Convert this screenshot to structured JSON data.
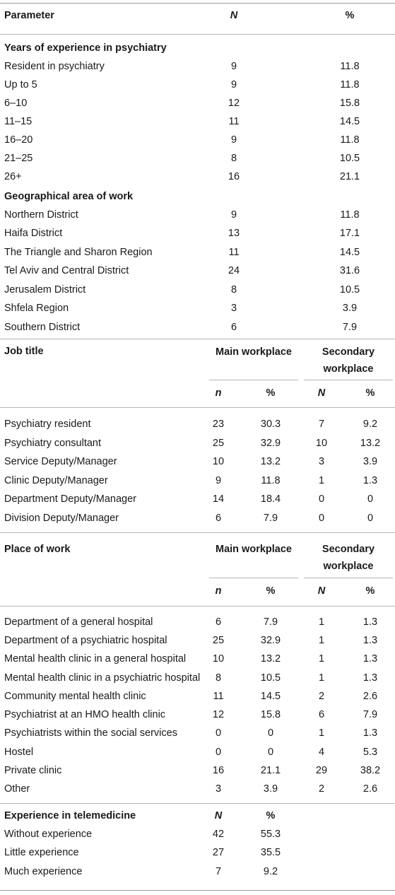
{
  "header": {
    "parameter": "Parameter",
    "n": "N",
    "pct": "%"
  },
  "section1": {
    "title": "Years of experience in psychiatry",
    "rows": [
      {
        "label": "Resident in psychiatry",
        "n": "9",
        "pct": "11.8"
      },
      {
        "label": "Up to 5",
        "n": "9",
        "pct": "11.8"
      },
      {
        "label": "6–10",
        "n": "12",
        "pct": "15.8"
      },
      {
        "label": "11–15",
        "n": "11",
        "pct": "14.5"
      },
      {
        "label": "16–20",
        "n": "9",
        "pct": "11.8"
      },
      {
        "label": "21–25",
        "n": "8",
        "pct": "10.5"
      },
      {
        "label": "26+",
        "n": "16",
        "pct": "21.1"
      }
    ]
  },
  "section2": {
    "title": "Geographical area of work",
    "rows": [
      {
        "label": "Northern District",
        "n": "9",
        "pct": "11.8"
      },
      {
        "label": "Haifa District",
        "n": "13",
        "pct": "17.1"
      },
      {
        "label": "The Triangle and Sharon Region",
        "n": "11",
        "pct": "14.5"
      },
      {
        "label": "Tel Aviv and Central District",
        "n": "24",
        "pct": "31.6"
      },
      {
        "label": "Jerusalem District",
        "n": "8",
        "pct": "10.5"
      },
      {
        "label": "Shfela Region",
        "n": "3",
        "pct": "3.9"
      },
      {
        "label": "Southern District",
        "n": "6",
        "pct": "7.9"
      }
    ]
  },
  "section3": {
    "title": "Job title",
    "main_header": "Main workplace",
    "secondary_header": "Secondary workplace",
    "sub_main_n": "n",
    "sub_main_pct": "%",
    "sub_sec_n": "N",
    "sub_sec_pct": "%",
    "rows": [
      {
        "label": "Psychiatry resident",
        "mn": "23",
        "mp": "30.3",
        "sn": "7",
        "sp": "9.2"
      },
      {
        "label": "Psychiatry consultant",
        "mn": "25",
        "mp": "32.9",
        "sn": "10",
        "sp": "13.2"
      },
      {
        "label": "Service Deputy/Manager",
        "mn": "10",
        "mp": "13.2",
        "sn": "3",
        "sp": "3.9"
      },
      {
        "label": "Clinic Deputy/Manager",
        "mn": "9",
        "mp": "11.8",
        "sn": "1",
        "sp": "1.3"
      },
      {
        "label": "Department Deputy/Manager",
        "mn": "14",
        "mp": "18.4",
        "sn": "0",
        "sp": "0"
      },
      {
        "label": "Division Deputy/Manager",
        "mn": "6",
        "mp": "7.9",
        "sn": "0",
        "sp": "0"
      }
    ]
  },
  "section4": {
    "title": "Place of work",
    "main_header": "Main workplace",
    "secondary_header": "Secondary workplace",
    "sub_main_n": "n",
    "sub_main_pct": "%",
    "sub_sec_n": "N",
    "sub_sec_pct": "%",
    "rows": [
      {
        "label": "Department of a general hospital",
        "mn": "6",
        "mp": "7.9",
        "sn": "1",
        "sp": "1.3"
      },
      {
        "label": "Department of a psychiatric hospital",
        "mn": "25",
        "mp": "32.9",
        "sn": "1",
        "sp": "1.3"
      },
      {
        "label": "Mental health clinic in a general hospital",
        "mn": "10",
        "mp": "13.2",
        "sn": "1",
        "sp": "1.3"
      },
      {
        "label": "Mental health clinic in a psychiatric hospital",
        "mn": "8",
        "mp": "10.5",
        "sn": "1",
        "sp": "1.3"
      },
      {
        "label": "Community mental health clinic",
        "mn": "11",
        "mp": "14.5",
        "sn": "2",
        "sp": "2.6"
      },
      {
        "label": "Psychiatrist at an HMO health clinic",
        "mn": "12",
        "mp": "15.8",
        "sn": "6",
        "sp": "7.9"
      },
      {
        "label": "Psychiatrists within the social services",
        "mn": "0",
        "mp": "0",
        "sn": "1",
        "sp": "1.3"
      },
      {
        "label": "Hostel",
        "mn": "0",
        "mp": "0",
        "sn": "4",
        "sp": "5.3"
      },
      {
        "label": "Private clinic",
        "mn": "16",
        "mp": "21.1",
        "sn": "29",
        "sp": "38.2"
      },
      {
        "label": "Other",
        "mn": "3",
        "mp": "3.9",
        "sn": "2",
        "sp": "2.6"
      }
    ]
  },
  "section5": {
    "title": "Experience in telemedicine",
    "n_header": "N",
    "pct_header": "%",
    "rows": [
      {
        "label": "Without experience",
        "n": "42",
        "pct": "55.3"
      },
      {
        "label": "Little experience",
        "n": "27",
        "pct": "35.5"
      },
      {
        "label": "Much experience",
        "n": "7",
        "pct": "9.2"
      }
    ]
  }
}
